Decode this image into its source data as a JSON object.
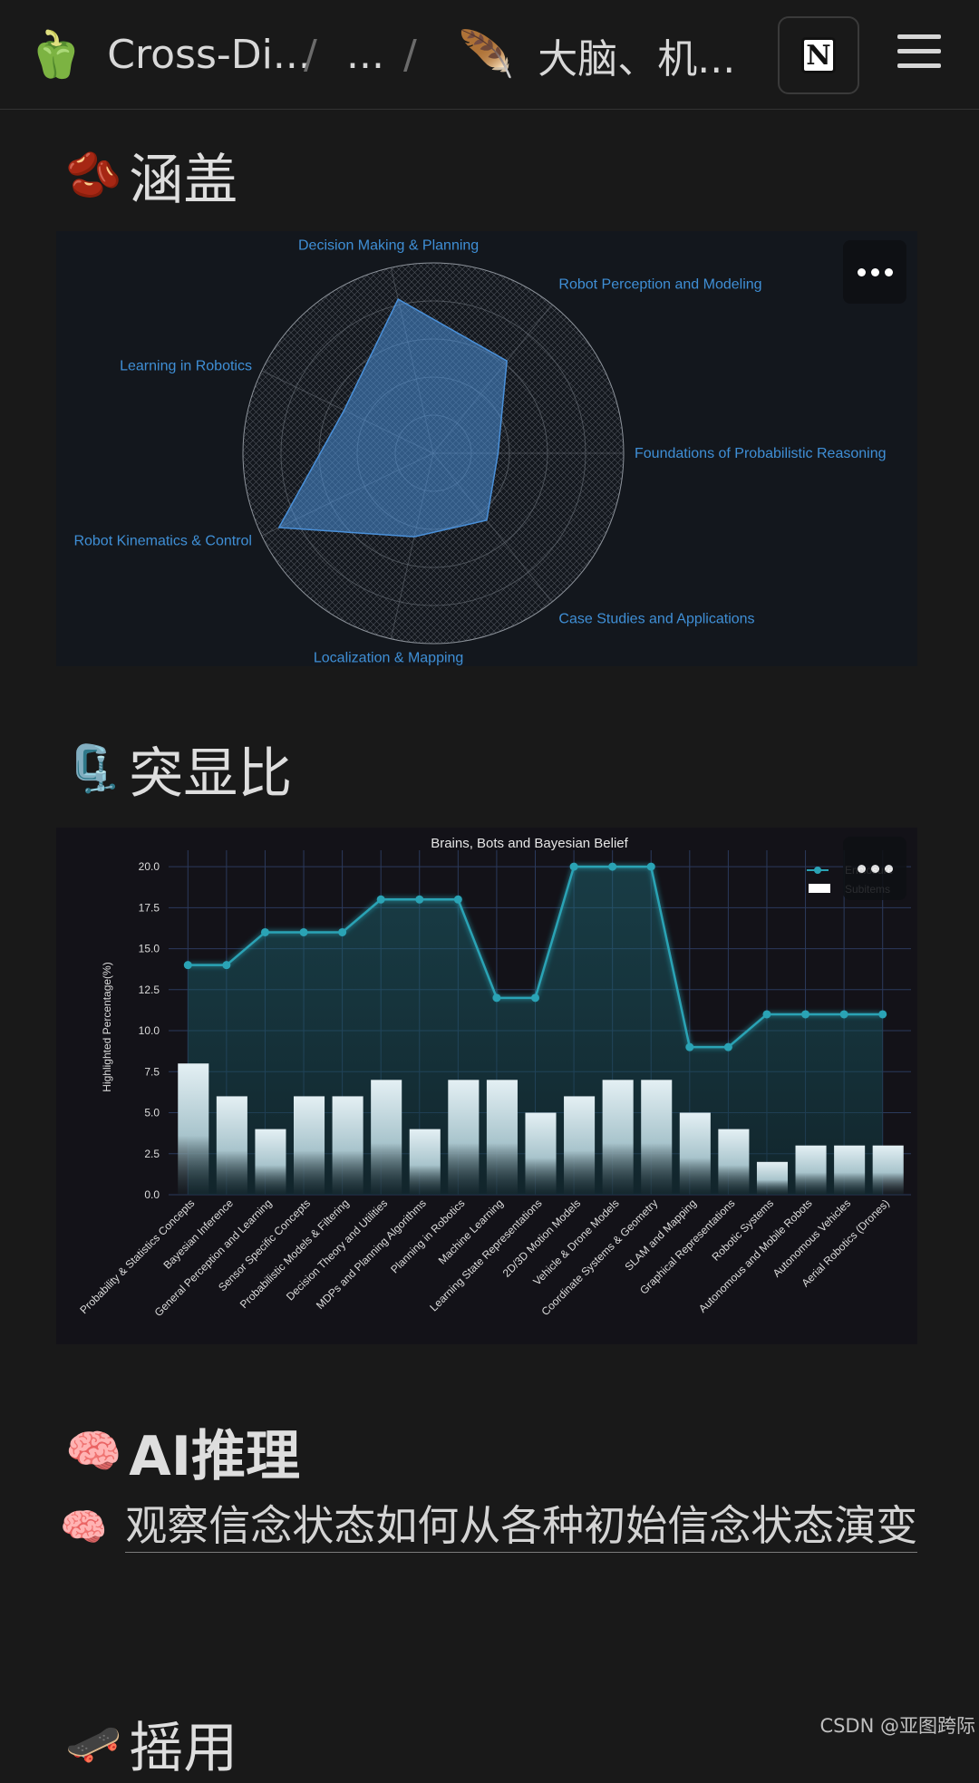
{
  "breadcrumb": {
    "root": {
      "emoji": "🫑",
      "label": "Cross-Di..."
    },
    "middle": "...",
    "current": {
      "emoji": "🪶",
      "label": "大脑、机..."
    },
    "separator": "/"
  },
  "header": {
    "notion_logo": "N"
  },
  "sections": {
    "coverage": {
      "emoji": "🫘",
      "title": "涵盖"
    },
    "salience": {
      "emoji": "🗜️",
      "title": "突显比"
    },
    "ai": {
      "emoji": "🧠",
      "title": "AI推理"
    },
    "next": {
      "emoji": "🛹",
      "title": "摇用"
    }
  },
  "radar": {
    "color": "#4a90d9",
    "label_color": "#3f8fd6",
    "axes": [
      {
        "label": "Foundations of Probabilistic Reasoning",
        "value": 0.34
      },
      {
        "label": "Robot Perception and Modeling",
        "value": 0.62
      },
      {
        "label": "Decision Making & Planning",
        "value": 0.83
      },
      {
        "label": "Learning in Robotics",
        "value": 0.52
      },
      {
        "label": "Robot Kinematics & Control",
        "value": 0.9
      },
      {
        "label": "Localization & Mapping",
        "value": 0.45
      },
      {
        "label": "Case Studies and Applications",
        "value": 0.45
      }
    ]
  },
  "chart_data": {
    "type": "bar",
    "title": "Brains, Bots and Bayesian Belief",
    "ylabel": "Highlighted Percentage(%)",
    "ylim": [
      0,
      21
    ],
    "yticks": [
      "0.0",
      "2.5",
      "5.0",
      "7.5",
      "10.0",
      "12.5",
      "15.0",
      "17.5",
      "20.0"
    ],
    "categories": [
      "Probability & Statistics Concepts",
      "Bayesian Inference",
      "General Perception and Learning",
      "Sensor Specific Concepts",
      "Probabilistic Models & Filtering",
      "Decision Theory and Utilities",
      "MDPs and Planning Algorithms",
      "Planning in Robotics",
      "Machine Learning",
      "Learning State Representations",
      "2D/3D Motion Models",
      "Vehicle & Drone Models",
      "Coordinate Systems & Geometry",
      "SLAM and Mapping",
      "Graphical Representations",
      "Robotic Systems",
      "Autonomous and Mobile Robots",
      "Autonomous Vehicles",
      "Aerial Robotics (Drones)"
    ],
    "series": [
      {
        "name": "Enclosure",
        "type": "line",
        "color": "#2aa3b5",
        "values": [
          14,
          14,
          16,
          16,
          16,
          18,
          18,
          18,
          12,
          12,
          20,
          20,
          20,
          9,
          9,
          11,
          11,
          11,
          11
        ]
      },
      {
        "name": "Subitems",
        "type": "bar",
        "color": "#ffffff",
        "values": [
          8,
          6,
          4,
          6,
          6,
          7,
          4,
          7,
          7,
          5,
          6,
          7,
          7,
          5,
          4,
          2,
          3,
          3,
          3
        ]
      }
    ],
    "legend": "top-right",
    "grid": true
  },
  "ai_link": {
    "emoji": "🧠",
    "text": "观察信念状态如何从各种初始信念状态演变"
  },
  "watermark": "CSDN @亚图跨际"
}
